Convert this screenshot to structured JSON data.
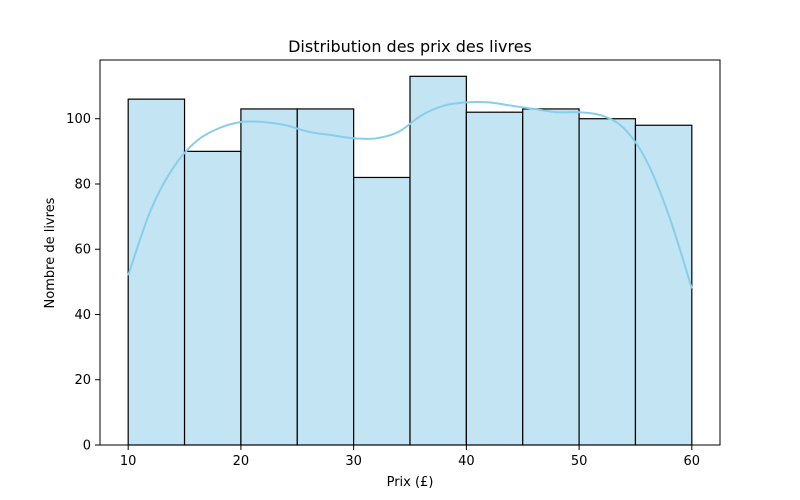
{
  "chart_data": {
    "type": "bar",
    "subtype": "histogram",
    "title": "Distribution des prix des livres",
    "xlabel": "Prix (£)",
    "ylabel": "Nombre de livres",
    "bins": [
      {
        "start": 10,
        "end": 15,
        "count": 106
      },
      {
        "start": 15,
        "end": 20,
        "count": 90
      },
      {
        "start": 20,
        "end": 25,
        "count": 103
      },
      {
        "start": 25,
        "end": 30,
        "count": 103
      },
      {
        "start": 30,
        "end": 35,
        "count": 82
      },
      {
        "start": 35,
        "end": 40,
        "count": 113
      },
      {
        "start": 40,
        "end": 45,
        "count": 102
      },
      {
        "start": 45,
        "end": 50,
        "count": 103
      },
      {
        "start": 50,
        "end": 55,
        "count": 100
      },
      {
        "start": 55,
        "end": 60,
        "count": 98
      }
    ],
    "kde": {
      "x": [
        10,
        12,
        14,
        16,
        18,
        20,
        22,
        24,
        26,
        28,
        30,
        32,
        34,
        36,
        38,
        40,
        42,
        44,
        46,
        48,
        50,
        52,
        54,
        56,
        58,
        60
      ],
      "y": [
        52,
        72,
        85,
        93,
        97,
        99,
        99,
        98,
        96,
        95,
        94,
        94,
        96,
        101,
        104,
        105,
        105,
        104,
        103,
        102,
        102,
        101,
        97,
        87,
        70,
        48
      ]
    },
    "xticks": [
      10,
      20,
      30,
      40,
      50,
      60
    ],
    "yticks": [
      0,
      20,
      40,
      60,
      80,
      100
    ],
    "xlim": [
      7.5,
      62.5
    ],
    "ylim": [
      0,
      118
    ],
    "colors": {
      "bar_fill": "#c3e4f3",
      "bar_edge": "#000000",
      "kde_line": "#87ceeb"
    },
    "grid": false,
    "legend": "none"
  }
}
